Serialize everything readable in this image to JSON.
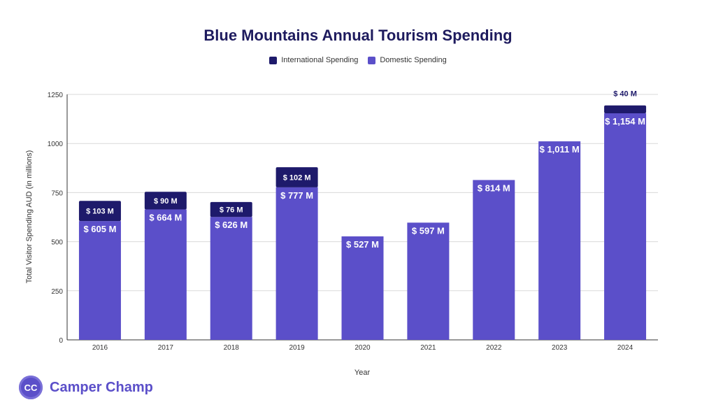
{
  "colors": {
    "international": "#1e1a6b",
    "domestic": "#5b4fc9",
    "title": "#1e1b5e",
    "brand": "#5b4fc9",
    "grid": "#d9d9d9"
  },
  "brand": {
    "mark": "CC",
    "name": "Camper Champ"
  },
  "chart_data": {
    "type": "bar",
    "stacked": true,
    "title": "Blue Mountains Annual Tourism Spending",
    "xlabel": "Year",
    "ylabel": "Total Visitor Spending AUD (in millions)",
    "ylim": [
      0,
      1250
    ],
    "yticks": [
      0,
      250,
      500,
      750,
      1000,
      1250
    ],
    "grid": true,
    "legend_position": "top-center",
    "categories": [
      "2016",
      "2017",
      "2018",
      "2019",
      "2020",
      "2021",
      "2022",
      "2023",
      "2024"
    ],
    "series": [
      {
        "name": "Domestic Spending",
        "values": [
          605,
          664,
          626,
          777,
          527,
          597,
          814,
          1011,
          1154
        ],
        "labels": [
          "$ 605 M",
          "$ 664 M",
          "$ 626 M",
          "$ 777 M",
          "$ 527 M",
          "$ 597 M",
          "$ 814 M",
          "$ 1,011 M",
          "$ 1,154 M"
        ]
      },
      {
        "name": "International Spending",
        "values": [
          103,
          90,
          76,
          102,
          null,
          null,
          null,
          null,
          40
        ],
        "labels": [
          "$ 103 M",
          "$ 90 M",
          "$ 76 M",
          "$ 102 M",
          null,
          null,
          null,
          null,
          "$ 40 M"
        ]
      }
    ],
    "legend_order": [
      "International Spending",
      "Domestic Spending"
    ]
  }
}
